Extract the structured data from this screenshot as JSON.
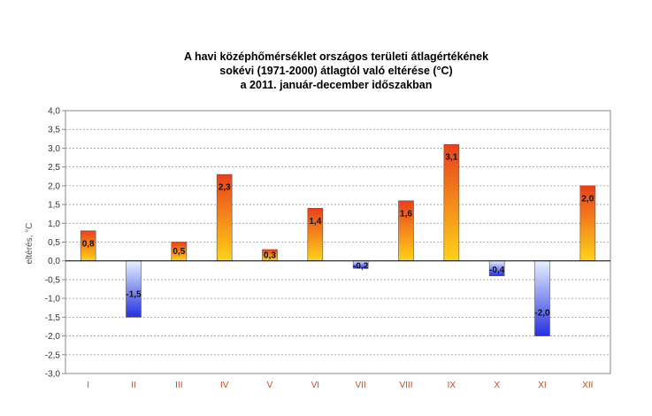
{
  "chart_data": {
    "type": "bar",
    "title_lines": [
      "A havi középhőmérséklet országos területi átlagértékének",
      "sokévi (1971-2000) átlagtól való eltérése (°C)",
      "a 2011. január-december időszakban"
    ],
    "xlabel": "",
    "ylabel": "eltérés, °C",
    "categories": [
      "I",
      "II",
      "III",
      "IV",
      "V",
      "VI",
      "VII",
      "VIII",
      "IX",
      "X",
      "XI",
      "XII"
    ],
    "values": [
      0.8,
      -1.5,
      0.5,
      2.3,
      0.3,
      1.4,
      -0.2,
      1.6,
      3.1,
      -0.4,
      -2.0,
      2.0
    ],
    "value_labels": [
      "0,8",
      "-1,5",
      "0,5",
      "2,3",
      "0,3",
      "1,4",
      "-0,2",
      "1,6",
      "3,1",
      "-0,4",
      "-2,0",
      "2,0"
    ],
    "ylim": [
      -3.0,
      4.0
    ],
    "yticks": [
      "4,0",
      "3,5",
      "3,0",
      "2,5",
      "2,0",
      "1,5",
      "1,0",
      "0,5",
      "0,0",
      "-0,5",
      "-1,0",
      "-1,5",
      "-2,0",
      "-2,5",
      "-3,0"
    ],
    "grid": true,
    "legend": "none",
    "colors": {
      "positive_top": "#e8401c",
      "positive_bottom": "#ffd21a",
      "negative_top": "#e8f2ff",
      "negative_bottom": "#2430e0",
      "category_label": "#c8491a",
      "grid": "#9a9a9a"
    }
  }
}
